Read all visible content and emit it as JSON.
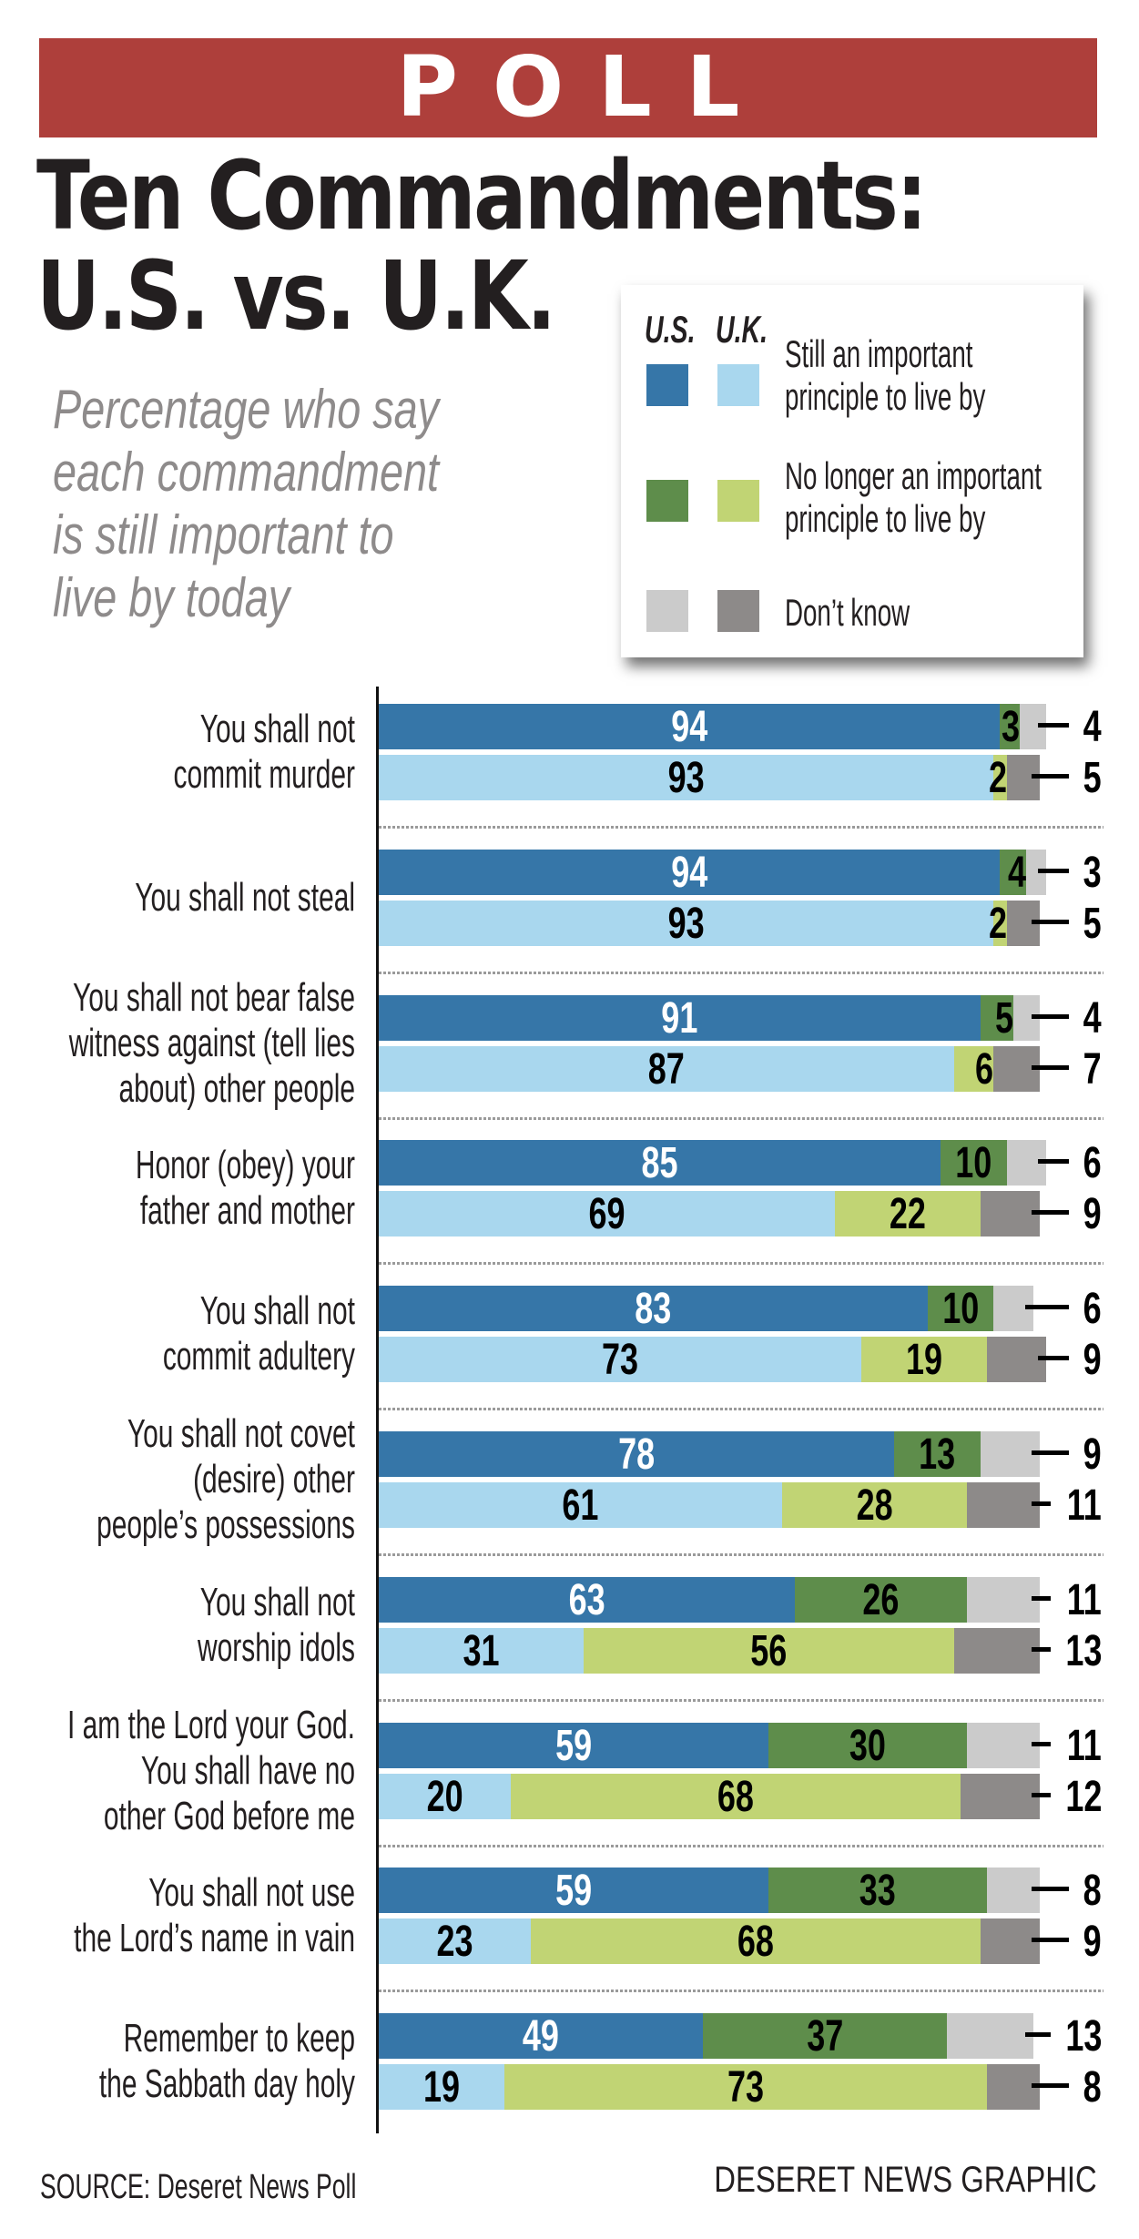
{
  "banner": {
    "label": "POLL"
  },
  "header": {
    "title_line1": "Ten Commandments:",
    "title_line2": "U.S. vs. U.K.",
    "subtitle_lines": [
      "Percentage who say",
      "each commandment",
      "is still important to",
      "live by today"
    ]
  },
  "legend": {
    "col_us": "U.S.",
    "col_uk": "U.K.",
    "items": [
      {
        "label_lines": [
          "Still an important",
          "principle to live by"
        ],
        "us_color": "#3676a8",
        "uk_color": "#a9d7ee"
      },
      {
        "label_lines": [
          "No longer an important",
          "principle to live by"
        ],
        "us_color": "#5e8d4b",
        "uk_color": "#c1d474"
      },
      {
        "label_lines": [
          "Don’t know"
        ],
        "us_color": "#cbcbcb",
        "uk_color": "#8d8a89"
      }
    ]
  },
  "colors": {
    "banner": "#ae3f3b",
    "us_important": "#3676a8",
    "uk_important": "#a9d7ee",
    "us_no_longer": "#5e8d4b",
    "uk_no_longer": "#c1d474",
    "us_dont_know": "#cbcbcb",
    "uk_dont_know": "#8d8a89"
  },
  "chart_data": {
    "type": "bar",
    "orientation": "horizontal",
    "stacked": true,
    "title": "Ten Commandments: U.S. vs. U.K.",
    "subtitle": "Percentage who say each commandment is still important to live by today",
    "xlabel": "",
    "ylabel": "",
    "xlim": [
      0,
      100
    ],
    "grid": false,
    "legend_position": "top-right",
    "segments": [
      "Still an important principle to live by",
      "No longer an important principle to live by",
      "Don't know"
    ],
    "countries": [
      "U.S.",
      "U.K."
    ],
    "categories": [
      "You shall not commit murder",
      "You shall not steal",
      "You shall not bear false witness against (tell lies about) other people",
      "Honor (obey) your father and mother",
      "You shall not commit adultery",
      "You shall not covet (desire) other people’s possessions",
      "You shall not worship idols",
      "I am the Lord your God. You shall have no other God before me",
      "You shall not use the Lord’s name in  vain",
      "Remember to keep the Sabbath day holy"
    ],
    "category_label_lines": [
      [
        "You shall not",
        "commit murder"
      ],
      [
        "You shall not steal"
      ],
      [
        "You shall not bear false",
        "witness against (tell lies",
        "about) other people"
      ],
      [
        "Honor (obey) your",
        "father and mother"
      ],
      [
        "You shall not",
        "commit adultery"
      ],
      [
        "You shall not covet",
        "(desire) other",
        "people’s possessions"
      ],
      [
        "You shall not",
        "worship idols"
      ],
      [
        "I am the Lord your God.",
        "You shall have no",
        "other God before me"
      ],
      [
        "You shall not use",
        "the Lord’s name in  vain"
      ],
      [
        "Remember to keep",
        "the Sabbath day holy"
      ]
    ],
    "series": [
      {
        "name": "U.S.",
        "important": [
          94,
          94,
          91,
          85,
          83,
          78,
          63,
          59,
          59,
          49
        ],
        "no_longer": [
          3,
          4,
          5,
          10,
          10,
          13,
          26,
          30,
          33,
          37
        ],
        "dont_know": [
          4,
          3,
          4,
          6,
          6,
          9,
          11,
          11,
          8,
          13
        ]
      },
      {
        "name": "U.K.",
        "important": [
          93,
          93,
          87,
          69,
          73,
          61,
          31,
          20,
          23,
          19
        ],
        "no_longer": [
          2,
          2,
          6,
          22,
          19,
          28,
          56,
          68,
          68,
          73
        ],
        "dont_know": [
          5,
          5,
          7,
          9,
          9,
          11,
          13,
          12,
          9,
          8
        ]
      }
    ]
  },
  "footer": {
    "source": "SOURCE: Deseret News Poll",
    "credit": "DESERET NEWS GRAPHIC"
  }
}
